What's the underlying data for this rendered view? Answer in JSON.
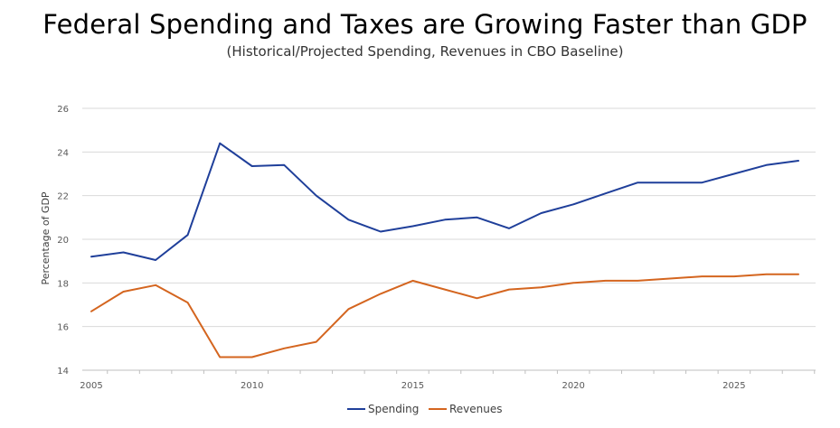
{
  "chart_data": {
    "type": "line",
    "title": "Federal Spending and Taxes are Growing Faster than GDP",
    "subtitle": "(Historical/Projected Spending, Revenues in CBO Baseline)",
    "ylabel": "Percentage of GDP",
    "xlabel": "",
    "ylim": [
      14,
      26
    ],
    "xlim": [
      2005,
      2027
    ],
    "yticks": [
      14,
      16,
      18,
      20,
      22,
      24,
      26
    ],
    "xticks": [
      2005,
      2010,
      2015,
      2020,
      2025
    ],
    "grid": true,
    "legend_position": "bottom",
    "x": [
      2005,
      2006,
      2007,
      2008,
      2009,
      2010,
      2011,
      2012,
      2013,
      2014,
      2015,
      2016,
      2017,
      2018,
      2019,
      2020,
      2021,
      2022,
      2023,
      2024,
      2025,
      2026,
      2027
    ],
    "series": [
      {
        "name": "Spending",
        "color": "#1f3f9a",
        "values": [
          19.2,
          19.4,
          19.05,
          20.2,
          24.4,
          23.35,
          23.4,
          22.0,
          20.9,
          20.35,
          20.6,
          20.9,
          21.0,
          20.5,
          21.2,
          21.6,
          22.1,
          22.6,
          22.6,
          22.6,
          23.0,
          23.4,
          23.6
        ]
      },
      {
        "name": "Revenues",
        "color": "#d4651f",
        "values": [
          16.7,
          17.6,
          17.9,
          17.1,
          14.6,
          14.6,
          15.0,
          15.3,
          16.8,
          17.5,
          18.1,
          17.7,
          17.3,
          17.7,
          17.8,
          18.0,
          18.1,
          18.1,
          18.2,
          18.3,
          18.3,
          18.4,
          18.4
        ]
      }
    ]
  }
}
